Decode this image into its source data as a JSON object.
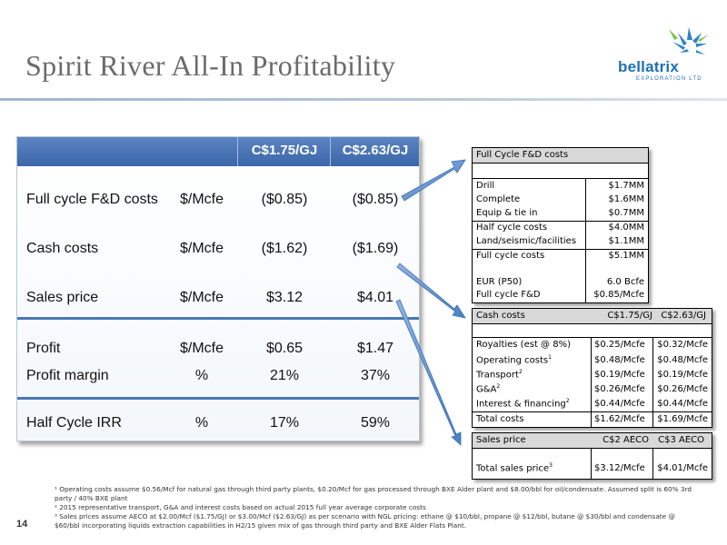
{
  "title": "Spirit River All-In Profitability",
  "logo": {
    "name": "bellatrix",
    "sub": "EXPLORATION LTD"
  },
  "main_table": {
    "headers": [
      "C$1.75/GJ",
      "C$2.63/GJ"
    ],
    "rows": [
      {
        "label": "Full cycle F&D costs",
        "unit": "$/Mcfe",
        "v1": "($0.85)",
        "v2": "($0.85)"
      },
      {
        "label": "Cash costs",
        "unit": "$/Mcfe",
        "v1": "($1.62)",
        "v2": "($1.69)"
      },
      {
        "label": "Sales price",
        "unit": "$/Mcfe",
        "v1": "$3.12",
        "v2": "$4.01"
      },
      {
        "label": "Profit",
        "unit": "$/Mcfe",
        "v1": "$0.65",
        "v2": "$1.47"
      },
      {
        "label": "Profit margin",
        "unit": "%",
        "v1": "21%",
        "v2": "37%"
      },
      {
        "label": "Half Cycle IRR",
        "unit": "%",
        "v1": "17%",
        "v2": "59%"
      }
    ]
  },
  "fd_box": {
    "title": "Full Cycle F&D costs",
    "rows": [
      {
        "label": "Drill",
        "value": "$1.7MM"
      },
      {
        "label": "Complete",
        "value": "$1.6MM"
      },
      {
        "label": "Equip & tie in",
        "value": "$0.7MM"
      },
      {
        "label": "Half cycle costs",
        "value": "$4.0MM"
      },
      {
        "label": "Land/seismic/facilities",
        "value": "$1.1MM"
      },
      {
        "label": "Full cycle costs",
        "value": "$5.1MM"
      },
      {
        "label": "EUR (P50)",
        "value": "6.0 Bcfe"
      },
      {
        "label": "Full cycle F&D",
        "value": "$0.85/Mcfe"
      }
    ]
  },
  "cash_box": {
    "title": "Cash costs",
    "col1": "C$1.75/GJ",
    "col2": "C$2.63/GJ",
    "rows": [
      {
        "label": "Royalties (est @ 8%)",
        "sup": "",
        "v1": "$0.25/Mcfe",
        "v2": "$0.32/Mcfe"
      },
      {
        "label": "Operating costs",
        "sup": "1",
        "v1": "$0.48/Mcfe",
        "v2": "$0.48/Mcfe"
      },
      {
        "label": "Transport",
        "sup": "2",
        "v1": "$0.19/Mcfe",
        "v2": "$0.19/Mcfe"
      },
      {
        "label": "G&A",
        "sup": "2",
        "v1": "$0.26/Mcfe",
        "v2": "$0.26/Mcfe"
      },
      {
        "label": "Interest & financing",
        "sup": "2",
        "v1": "$0.44/Mcfe",
        "v2": "$0.44/Mcfe"
      },
      {
        "label": "Total costs",
        "sup": "",
        "v1": "$1.62/Mcfe",
        "v2": "$1.69/Mcfe"
      }
    ]
  },
  "sales_box": {
    "title": "Sales price",
    "col1": "C$2 AECO",
    "col2": "C$3 AECO",
    "row": {
      "label": "Total sales price",
      "sup": "3",
      "v1": "$3.12/Mcfe",
      "v2": "$4.01/Mcfe"
    }
  },
  "footnotes": {
    "f1": "¹ Operating costs assume $0.56/Mcf for natural gas through third party plants, $0.20/Mcf for gas processed through BXE Alder plant and $8.00/bbl for oil/condensate.  Assumed split is 60% 3rd party / 40% BXE plant",
    "f2": "² 2015 representative transport, G&A and interest costs based on actual 2015 full year average corporate costs",
    "f3": "³ Sales prices assume AECO at $2.00/Mcf ($1.75/GJ) or $3.00/Mcf ($2.63/GJ) as per scenario with NGL pricing: ethane @ $10/bbl, propane @ $12/bbl, butane @ $30/bbl and condensate @ $60/bbl incorporating liquids extraction capabilities in H2/15 given mix of gas through third party and BXE Alder Flats Plant."
  },
  "page_number": "14",
  "colors": {
    "header_blue": "#4a72b2",
    "arrow_blue": "#4f83c6",
    "title_grey": "#6b6b6b"
  }
}
